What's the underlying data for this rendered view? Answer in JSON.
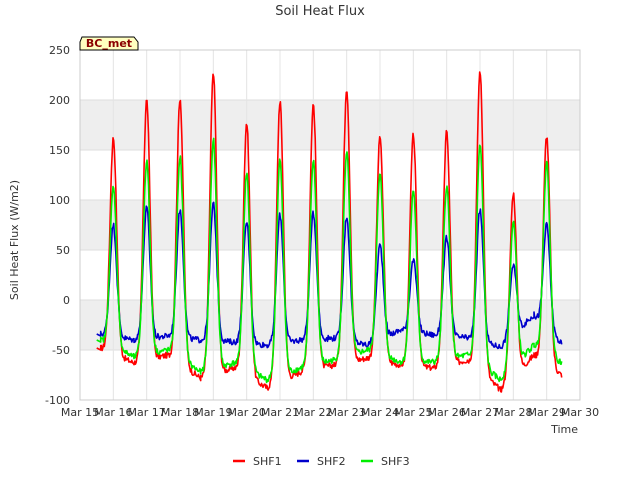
{
  "chart_data": {
    "type": "line",
    "title": "Soil Heat Flux",
    "xlabel": "Time",
    "ylabel": "Soil Heat Flux (W/m2)",
    "badge": "BC_met",
    "ylim": [
      -100,
      250
    ],
    "yticks": [
      -100,
      -50,
      0,
      50,
      100,
      150,
      200,
      250
    ],
    "xlim": [
      15,
      30
    ],
    "xticks": [
      15,
      16,
      17,
      18,
      19,
      20,
      21,
      22,
      23,
      24,
      25,
      26,
      27,
      28,
      29,
      30
    ],
    "xtick_labels": [
      "Mar 15",
      "Mar 16",
      "Mar 17",
      "Mar 18",
      "Mar 19",
      "Mar 20",
      "Mar 21",
      "Mar 22",
      "Mar 23",
      "Mar 24",
      "Mar 25",
      "Mar 26",
      "Mar 27",
      "Mar 28",
      "Mar 29",
      "Mar 30"
    ],
    "shaded_bands": [
      [
        -50,
        0
      ],
      [
        50,
        100
      ],
      [
        150,
        200
      ]
    ],
    "day_starts": [
      15.5,
      16.5,
      17.5,
      18.5,
      19.5,
      20.5,
      21.5,
      22.5,
      23.5,
      24.5,
      25.5,
      26.5,
      27.5,
      28.5
    ],
    "end_day": 29.45,
    "peak_time_offset": 0.38,
    "series": [
      {
        "name": "SHF1",
        "color": "#ff0000",
        "night": [
          -48,
          -63,
          -55,
          -78,
          -68,
          -88,
          -72,
          -65,
          -58,
          -65,
          -68,
          -60,
          -90,
          -55,
          -75
        ],
        "peaks": [
          162,
          200,
          202,
          228,
          177,
          199,
          196,
          212,
          163,
          165,
          168,
          229,
          107,
          164
        ]
      },
      {
        "name": "SHF2",
        "color": "#0000cc",
        "night": [
          -34,
          -40,
          -36,
          -40,
          -42,
          -45,
          -40,
          -38,
          -45,
          -30,
          -35,
          -38,
          -47,
          -15,
          -44
        ],
        "peaks": [
          75,
          92,
          90,
          96,
          78,
          85,
          87,
          83,
          55,
          40,
          62,
          90,
          35,
          75
        ]
      },
      {
        "name": "SHF3",
        "color": "#00ee00",
        "night": [
          -40,
          -57,
          -50,
          -72,
          -63,
          -80,
          -68,
          -60,
          -50,
          -62,
          -62,
          -55,
          -80,
          -45,
          -63
        ],
        "peaks": [
          113,
          139,
          143,
          161,
          127,
          140,
          140,
          148,
          125,
          110,
          114,
          155,
          78,
          137
        ]
      }
    ]
  }
}
